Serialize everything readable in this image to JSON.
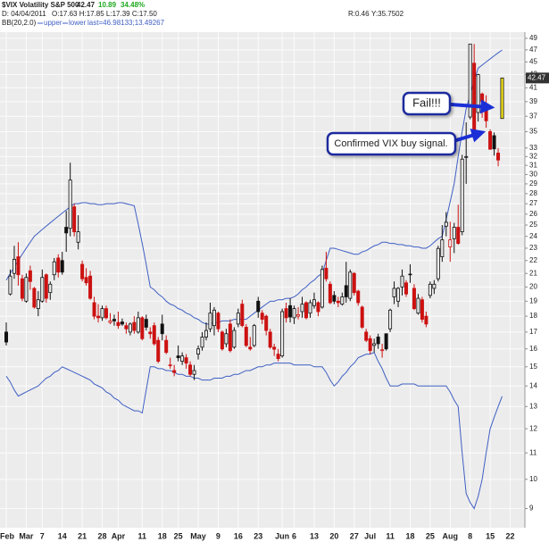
{
  "header": {
    "title": "$VIX Volatility S&P 500",
    "last": "42.47",
    "change": "10.89",
    "change_pct": "34.48%",
    "r": "R:0.46",
    "y": "Y:35.7502",
    "date": "D: 04/04/2011",
    "ohlc": "O:17.63 H:17.85 L:17.39 C:17.50"
  },
  "chart_data": {
    "type": "candlestick",
    "indicator": "BB(20,2.0)",
    "indicator_last": "last=46.98133;13.49267",
    "annotations": [
      "Fail!!!",
      "Confirmed VIX buy signal."
    ],
    "up_color": "#111111",
    "down_color": "#cc1111",
    "last_color": "#f2e21a",
    "log_scale": true,
    "grid": true,
    "ylim": [
      8.4,
      50.1
    ],
    "yticks": [
      9,
      10,
      11,
      12,
      13,
      14,
      15,
      16,
      17,
      18,
      19,
      20,
      21,
      22,
      23,
      24,
      25,
      26,
      27,
      28,
      29,
      30,
      31,
      32,
      33,
      35,
      37,
      39,
      41,
      43,
      45,
      47,
      49
    ],
    "categories": [
      "Feb",
      null,
      null,
      null,
      null,
      "Mar",
      null,
      null,
      null,
      "7",
      null,
      null,
      null,
      null,
      "14",
      null,
      null,
      null,
      null,
      "21",
      null,
      null,
      null,
      null,
      "28",
      null,
      null,
      null,
      "Apr",
      null,
      null,
      null,
      null,
      null,
      "11",
      null,
      null,
      null,
      null,
      "18",
      null,
      null,
      null,
      "25",
      null,
      null,
      null,
      null,
      "May",
      null,
      null,
      null,
      null,
      "9",
      null,
      null,
      null,
      null,
      "16",
      null,
      null,
      null,
      null,
      "23",
      null,
      null,
      null,
      null,
      null,
      "Jun",
      null,
      null,
      "6",
      null,
      null,
      null,
      null,
      "13",
      null,
      null,
      null,
      null,
      "20",
      null,
      null,
      null,
      null,
      "27",
      null,
      null,
      null,
      "Jul",
      null,
      null,
      null,
      null,
      "11",
      null,
      null,
      null,
      null,
      "18",
      null,
      null,
      null,
      null,
      "25",
      null,
      null,
      null,
      null,
      "Aug",
      null,
      null,
      null,
      null,
      "8",
      null,
      null,
      null,
      null,
      "15",
      null,
      null,
      null,
      null,
      "22"
    ],
    "open": [
      17.0,
      19.5,
      21.0,
      22.3,
      20.6,
      19.0,
      21.2,
      19.9,
      18.5,
      19.0,
      20.9,
      19.6,
      20.9,
      22.2,
      22.0,
      24.8,
      24.7,
      26.7,
      23.5,
      21.7,
      20.7,
      20.8,
      18.9,
      18.0,
      17.9,
      18.5,
      17.6,
      17.8,
      17.6,
      17.63,
      17.4,
      17.0,
      17.6,
      17.0,
      17.9,
      17.8,
      17.0,
      17.4,
      16.5,
      17.5,
      16.5,
      15.1,
      14.8,
      15.6,
      15.3,
      15.5,
      15.1,
      14.6,
      15.7,
      16.1,
      16.7,
      17.2,
      17.4,
      18.2,
      17.0,
      16.3,
      17.5,
      16.1,
      17.5,
      18.8,
      17.3,
      16.1,
      16.2,
      19.0,
      18.2,
      18.0,
      17.0,
      16.1,
      15.7,
      15.6,
      18.5,
      18.7,
      17.9,
      18.0,
      18.3,
      18.9,
      18.2,
      18.7,
      18.9,
      18.6,
      21.4,
      20.2,
      19.4,
      19.0,
      18.8,
      20.1,
      19.2,
      21.0,
      19.7,
      18.6,
      17.0,
      16.6,
      16.2,
      16.7,
      15.9,
      16.9,
      17.2,
      19.3,
      19.0,
      20.0,
      20.3,
      20.9,
      19.9,
      18.2,
      19.1,
      18.0,
      19.4,
      19.9,
      20.6,
      22.3,
      24.9,
      23.1,
      23.8,
      24.8,
      24.4,
      31.9,
      36.9,
      44.8,
      37.5,
      40.1,
      37.9,
      35.0,
      34.5,
      32.4,
      36.7,
      null,
      null
    ],
    "high": [
      17.6,
      21.3,
      23.2,
      23.5,
      20.9,
      21.0,
      21.6,
      20.0,
      19.7,
      21.3,
      21.0,
      20.4,
      22.2,
      22.5,
      22.7,
      26.3,
      31.3,
      27.0,
      25.9,
      22.0,
      21.4,
      21.2,
      19.3,
      18.8,
      18.7,
      18.7,
      18.2,
      18.1,
      18.3,
      17.85,
      17.6,
      17.6,
      18.0,
      18.3,
      18.0,
      18.1,
      17.3,
      17.6,
      16.7,
      18.1,
      16.8,
      15.5,
      15.1,
      16.2,
      15.8,
      15.7,
      15.3,
      15.1,
      16.2,
      17.0,
      17.6,
      18.9,
      18.6,
      18.3,
      17.1,
      17.2,
      17.8,
      17.3,
      18.5,
      19.1,
      17.5,
      16.7,
      17.5,
      19.3,
      18.4,
      18.1,
      17.2,
      16.3,
      16.0,
      18.5,
      18.9,
      19.2,
      18.7,
      18.6,
      19.3,
      19.0,
      19.1,
      19.6,
      19.0,
      21.6,
      22.7,
      20.4,
      19.7,
      19.3,
      19.6,
      21.9,
      21.3,
      21.1,
      19.8,
      18.7,
      17.2,
      16.8,
      16.6,
      16.9,
      16.3,
      16.9,
      18.5,
      20.4,
      20.0,
      21.3,
      20.5,
      21.7,
      20.2,
      19.5,
      19.3,
      18.3,
      20.4,
      20.5,
      23.2,
      25.0,
      26.2,
      25.3,
      25.2,
      26.9,
      32.2,
      36.2,
      48.0,
      48.0,
      43.1,
      40.3,
      39.9,
      35.3,
      34.9,
      33.0,
      42.5,
      null,
      null
    ],
    "low": [
      16.2,
      19.4,
      20.6,
      20.1,
      19.0,
      18.9,
      19.8,
      18.5,
      18.0,
      18.9,
      18.9,
      19.1,
      20.5,
      20.7,
      20.9,
      22.7,
      24.0,
      24.0,
      22.9,
      20.4,
      20.1,
      19.1,
      17.8,
      17.6,
      17.7,
      17.8,
      17.5,
      17.4,
      17.2,
      17.39,
      16.9,
      16.8,
      16.9,
      16.9,
      16.5,
      17.1,
      16.6,
      16.2,
      15.2,
      16.5,
      15.7,
      14.9,
      14.5,
      15.3,
      15.1,
      14.9,
      14.5,
      14.3,
      15.4,
      15.9,
      16.5,
      17.0,
      16.8,
      17.0,
      15.9,
      16.1,
      15.8,
      16.0,
      17.3,
      17.3,
      16.1,
      15.9,
      16.1,
      17.9,
      17.5,
      16.8,
      16.0,
      15.6,
      15.3,
      15.5,
      17.6,
      17.6,
      17.5,
      17.8,
      17.9,
      17.8,
      17.9,
      18.5,
      18.0,
      18.5,
      20.4,
      18.8,
      18.8,
      18.6,
      18.7,
      18.9,
      19.0,
      19.4,
      18.7,
      17.2,
      16.4,
      15.7,
      15.8,
      16.0,
      15.5,
      15.9,
      17.0,
      18.8,
      18.6,
      19.4,
      19.3,
      20.3,
      18.4,
      18.1,
      17.6,
      17.3,
      19.2,
      19.5,
      20.4,
      21.9,
      24.0,
      21.9,
      22.6,
      23.3,
      24.1,
      29.0,
      36.6,
      35.0,
      36.3,
      36.8,
      35.5,
      32.8,
      32.1,
      30.9,
      36.7,
      null,
      null
    ],
    "close": [
      16.4,
      20.8,
      22.1,
      20.9,
      19.2,
      20.7,
      20.4,
      18.6,
      19.1,
      20.7,
      19.2,
      20.2,
      21.9,
      21.1,
      21.1,
      24.3,
      29.4,
      24.4,
      24.4,
      20.6,
      20.3,
      19.2,
      18.0,
      17.9,
      18.5,
      17.9,
      17.7,
      17.7,
      17.4,
      17.5,
      17.2,
      17.5,
      17.1,
      17.9,
      16.6,
      17.3,
      16.9,
      16.3,
      15.3,
      16.9,
      15.8,
      15.1,
      14.7,
      15.5,
      15.6,
      15.2,
      14.6,
      14.8,
      16.0,
      16.7,
      17.1,
      18.2,
      18.4,
      17.2,
      16.0,
      16.9,
      15.9,
      17.1,
      18.2,
      17.4,
      16.2,
      16.0,
      17.4,
      18.3,
      17.8,
      17.1,
      16.1,
      15.98,
      15.45,
      18.3,
      17.9,
      17.95,
      18.5,
      18.1,
      18.8,
      17.9,
      18.9,
      19.1,
      18.3,
      21.3,
      20.6,
      18.9,
      19.0,
      18.9,
      19.3,
      19.3,
      21.1,
      19.6,
      18.9,
      17.3,
      16.5,
      15.9,
      16.3,
      16.3,
      15.95,
      16.0,
      18.4,
      19.9,
      19.9,
      20.8,
      19.5,
      20.95,
      18.5,
      19.2,
      17.8,
      17.5,
      20.2,
      20.2,
      22.98,
      23.7,
      25.25,
      23.7,
      24.8,
      23.4,
      31.7,
      32.0,
      48.0,
      35.1,
      42.99,
      39.0,
      36.4,
      32.85,
      32.9,
      31.6,
      42.47,
      null,
      null
    ],
    "series": [
      {
        "name": "upper",
        "color": "#3f5fc4",
        "values": [
          20.5,
          21.0,
          21.5,
          22.0,
          22.5,
          23.0,
          23.5,
          24.0,
          24.3,
          24.6,
          24.9,
          25.2,
          25.5,
          25.8,
          26.1,
          26.4,
          26.7,
          27.0,
          27.0,
          27.1,
          27.1,
          27.0,
          27.0,
          26.9,
          26.9,
          27.0,
          27.0,
          27.0,
          27.1,
          27.1,
          27.0,
          26.9,
          26.8,
          25.1,
          23.4,
          21.7,
          20.0,
          19.8,
          19.5,
          19.3,
          19.0,
          18.8,
          18.7,
          18.5,
          18.4,
          18.2,
          18.1,
          17.9,
          17.8,
          17.6,
          17.5,
          17.5,
          17.6,
          17.6,
          17.7,
          17.7,
          17.7,
          17.8,
          17.8,
          17.8,
          17.8,
          18.0,
          18.2,
          18.4,
          18.6,
          18.8,
          19.0,
          19.0,
          19.1,
          19.1,
          19.2,
          19.2,
          19.3,
          19.5,
          19.8,
          20.0,
          20.3,
          20.5,
          20.8,
          21.0,
          22.0,
          23.0,
          23.0,
          22.9,
          22.8,
          22.7,
          22.6,
          22.5,
          22.5,
          22.7,
          22.8,
          23.0,
          23.2,
          23.3,
          23.5,
          23.5,
          23.4,
          23.4,
          23.3,
          23.3,
          23.2,
          23.2,
          23.1,
          23.1,
          23.0,
          23.0,
          23.2,
          23.5,
          23.8,
          24.0,
          25.5,
          27.2,
          29.0,
          32.0,
          35.0,
          38.0,
          40.0,
          42.0,
          44.0,
          44.5,
          45.0,
          45.5,
          46.0,
          46.5,
          46.98,
          null,
          null
        ]
      },
      {
        "name": "lower",
        "color": "#3f5fc4",
        "values": [
          14.5,
          14.2,
          13.8,
          13.5,
          13.6,
          13.7,
          13.8,
          13.9,
          14.0,
          14.2,
          14.4,
          14.5,
          14.7,
          14.8,
          15.0,
          14.9,
          14.8,
          14.7,
          14.6,
          14.5,
          14.4,
          14.3,
          14.1,
          14.0,
          13.9,
          13.7,
          13.6,
          13.4,
          13.3,
          13.1,
          13.0,
          12.9,
          12.8,
          12.8,
          12.7,
          13.8,
          15.0,
          15.0,
          14.9,
          14.9,
          14.8,
          14.8,
          14.7,
          14.6,
          14.6,
          14.5,
          14.5,
          14.4,
          14.4,
          14.3,
          14.3,
          14.3,
          14.4,
          14.4,
          14.4,
          14.5,
          14.5,
          14.6,
          14.6,
          14.7,
          14.8,
          14.8,
          14.9,
          15.0,
          15.0,
          15.1,
          15.1,
          15.2,
          15.2,
          15.2,
          15.2,
          15.2,
          15.1,
          15.1,
          15.1,
          15.1,
          15.1,
          15.0,
          15.0,
          15.0,
          14.7,
          14.3,
          14.0,
          14.2,
          14.5,
          14.7,
          15.0,
          15.2,
          15.5,
          15.6,
          15.7,
          15.7,
          15.8,
          15.3,
          14.9,
          14.4,
          14.0,
          14.0,
          14.0,
          14.1,
          14.1,
          14.1,
          14.1,
          14.0,
          14.0,
          14.0,
          14.0,
          14.0,
          14.0,
          14.0,
          14.0,
          13.7,
          13.3,
          13.0,
          11.0,
          9.5,
          9.2,
          9.0,
          9.4,
          10.0,
          11.0,
          12.0,
          12.5,
          13.0,
          13.49,
          null,
          null
        ]
      }
    ]
  }
}
